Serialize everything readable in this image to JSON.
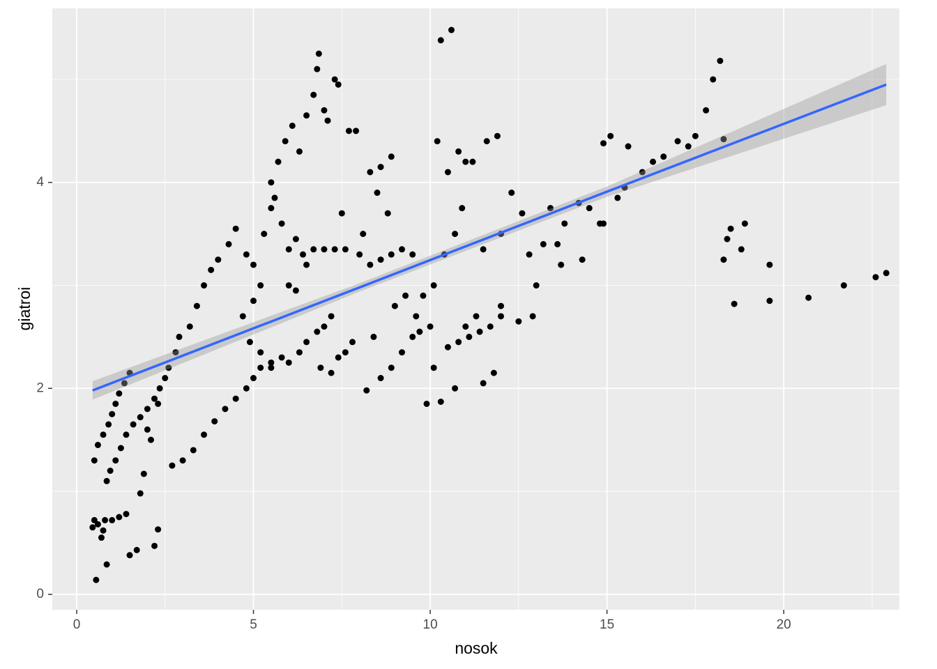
{
  "chart_data": {
    "type": "scatter",
    "x_label": "nosok",
    "y_label": "giatroi",
    "xlim": [
      -0.69,
      23.27
    ],
    "ylim": [
      -0.15,
      5.69
    ],
    "xticks": [
      0,
      5,
      10,
      15,
      20
    ],
    "yticks": [
      0,
      2,
      4
    ],
    "xminor": [
      2.5,
      7.5,
      12.5,
      17.5,
      22.5
    ],
    "yminor": [
      1,
      3,
      5
    ],
    "grid": true,
    "series": [
      {
        "color": "#000000",
        "x": [
          0.45,
          0.5,
          0.6,
          0.55,
          0.85,
          0.7,
          0.75,
          0.8,
          1.0,
          1.2,
          1.4,
          1.5,
          1.7,
          2.2,
          2.3,
          1.8,
          1.9,
          0.5,
          0.6,
          0.75,
          0.9,
          1.0,
          1.1,
          1.2,
          1.35,
          1.5,
          0.85,
          0.95,
          1.1,
          1.25,
          1.4,
          1.6,
          1.8,
          2.0,
          2.2,
          2.35,
          2.5,
          2.6,
          2.8,
          2.9,
          2.0,
          2.1,
          2.3,
          2.7,
          3.0,
          3.3,
          3.6,
          3.9,
          4.2,
          4.5,
          4.8,
          5.0,
          5.2,
          5.5,
          5.8,
          6.0,
          6.3,
          6.5,
          6.8,
          7.0,
          7.2,
          3.2,
          3.4,
          3.6,
          3.8,
          4.0,
          4.3,
          4.5,
          4.8,
          5.0,
          5.2,
          5.3,
          5.5,
          5.6,
          5.8,
          6.0,
          6.2,
          6.4,
          6.5,
          6.7,
          7.0,
          7.3,
          7.6,
          5.5,
          5.7,
          5.9,
          6.1,
          6.3,
          6.5,
          6.7,
          6.8,
          6.85,
          7.3,
          7.4,
          7.0,
          7.1,
          6.0,
          6.2,
          5.0,
          4.7,
          5.5,
          5.2,
          4.9,
          7.5,
          7.7,
          7.9,
          8.1,
          8.0,
          8.3,
          8.6,
          8.9,
          8.5,
          8.8,
          8.4,
          8.2,
          8.6,
          8.9,
          9.2,
          9.5,
          9.7,
          9.9,
          10.3,
          10.1,
          10.0,
          9.8,
          9.5,
          9.2,
          8.9,
          8.6,
          8.3,
          7.8,
          7.4,
          7.2,
          6.9,
          7.6,
          9.0,
          9.3,
          9.6,
          10.2,
          10.5,
          10.3,
          10.6,
          10.8,
          11.0,
          10.9,
          10.7,
          10.4,
          10.1,
          10.5,
          10.8,
          11.1,
          11.4,
          11.7,
          12.0,
          11.3,
          11.0,
          10.7,
          11.5,
          11.8,
          12.0,
          11.9,
          11.6,
          11.2,
          12.3,
          12.6,
          12.0,
          11.5,
          12.8,
          13.0,
          12.5,
          12.9,
          13.2,
          13.6,
          13.4,
          13.8,
          14.2,
          14.5,
          14.8,
          14.3,
          13.7,
          14.9,
          15.1,
          14.9,
          15.6,
          15.3,
          15.5,
          16.0,
          16.3,
          16.6,
          17.0,
          17.5,
          17.8,
          18.0,
          18.2,
          17.3,
          18.3,
          18.3,
          18.4,
          18.5,
          18.6,
          18.8,
          18.9,
          19.6,
          19.6,
          20.7,
          21.7,
          22.6,
          22.9
        ],
        "values": [
          0.65,
          0.72,
          0.68,
          0.14,
          0.29,
          0.55,
          0.62,
          0.72,
          0.72,
          0.75,
          0.78,
          0.38,
          0.43,
          0.47,
          0.63,
          0.98,
          1.17,
          1.3,
          1.45,
          1.55,
          1.65,
          1.75,
          1.85,
          1.95,
          2.05,
          2.15,
          1.1,
          1.2,
          1.3,
          1.42,
          1.55,
          1.65,
          1.72,
          1.8,
          1.9,
          2.0,
          2.1,
          2.2,
          2.35,
          2.5,
          1.6,
          1.5,
          1.85,
          1.25,
          1.3,
          1.4,
          1.55,
          1.68,
          1.8,
          1.9,
          2.0,
          2.1,
          2.2,
          2.25,
          2.3,
          2.25,
          2.35,
          2.45,
          2.55,
          2.6,
          2.7,
          2.6,
          2.8,
          3.0,
          3.15,
          3.25,
          3.4,
          3.55,
          3.3,
          3.2,
          3.0,
          3.5,
          3.75,
          3.85,
          3.6,
          3.35,
          3.45,
          3.3,
          3.2,
          3.35,
          3.35,
          3.35,
          3.35,
          4.0,
          4.2,
          4.4,
          4.55,
          4.3,
          4.65,
          4.85,
          5.1,
          5.25,
          5.0,
          4.95,
          4.7,
          4.6,
          3.0,
          2.95,
          2.85,
          2.7,
          2.2,
          2.35,
          2.45,
          3.7,
          4.5,
          4.5,
          3.5,
          3.3,
          4.1,
          4.15,
          4.25,
          3.9,
          3.7,
          2.5,
          1.98,
          2.1,
          2.2,
          2.35,
          2.5,
          2.55,
          1.85,
          1.87,
          2.2,
          2.6,
          2.9,
          3.3,
          3.35,
          3.3,
          3.25,
          3.2,
          2.45,
          2.3,
          2.15,
          2.2,
          2.35,
          2.8,
          2.9,
          2.7,
          4.4,
          4.1,
          5.38,
          5.48,
          4.3,
          4.2,
          3.75,
          3.5,
          3.3,
          3.0,
          2.4,
          2.45,
          2.5,
          2.55,
          2.6,
          2.7,
          2.7,
          2.6,
          2.0,
          2.05,
          2.15,
          2.8,
          4.45,
          4.4,
          4.2,
          3.9,
          3.7,
          3.5,
          3.35,
          3.3,
          3.0,
          2.65,
          2.7,
          3.4,
          3.4,
          3.75,
          3.6,
          3.8,
          3.75,
          3.6,
          3.25,
          3.2,
          3.6,
          4.45,
          4.38,
          4.35,
          3.85,
          3.95,
          4.1,
          4.2,
          4.25,
          4.4,
          4.45,
          4.7,
          5.0,
          5.18,
          4.35,
          4.42,
          3.25,
          3.45,
          3.55,
          2.82,
          3.35,
          3.6,
          2.85,
          3.2,
          2.88,
          3.0,
          3.08,
          3.12
        ]
      }
    ],
    "smooth": {
      "color": "#3366ff",
      "band_color": "#999999",
      "x": [
        0.45,
        8,
        15,
        22.9
      ],
      "values": [
        1.98,
        2.98,
        3.91,
        4.95
      ],
      "lower": [
        1.89,
        2.94,
        3.86,
        4.75
      ],
      "upper": [
        2.07,
        3.02,
        3.96,
        5.15
      ]
    }
  }
}
